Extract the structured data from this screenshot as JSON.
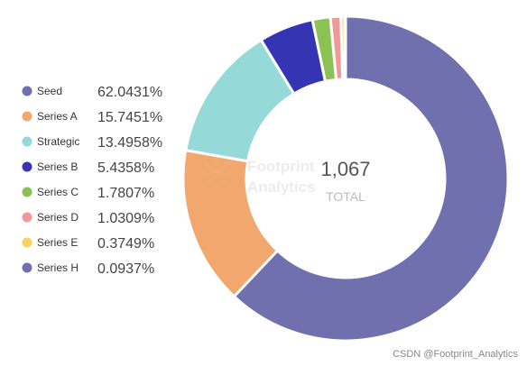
{
  "chart_data": {
    "type": "pie",
    "variant": "donut",
    "legend_position": "left",
    "center_value": "1,067",
    "center_label": "TOTAL",
    "slices": [
      {
        "name": "Seed",
        "value": 62.0431,
        "label": "62.0431%",
        "color": "#7070ae"
      },
      {
        "name": "Series A",
        "value": 15.7451,
        "label": "15.7451%",
        "color": "#f1a76e"
      },
      {
        "name": "Strategic",
        "value": 13.4958,
        "label": "13.4958%",
        "color": "#96d9d9"
      },
      {
        "name": "Series B",
        "value": 5.4358,
        "label": "5.4358%",
        "color": "#3535b3"
      },
      {
        "name": "Series C",
        "value": 1.7807,
        "label": "1.7807%",
        "color": "#8cc153"
      },
      {
        "name": "Series D",
        "value": 1.0309,
        "label": "1.0309%",
        "color": "#f19999"
      },
      {
        "name": "Series E",
        "value": 0.3749,
        "label": "0.3749%",
        "color": "#f7d360"
      },
      {
        "name": "Series H",
        "value": 0.0937,
        "label": "0.0937%",
        "color": "#7070ae"
      }
    ]
  },
  "watermark": {
    "line1": "Footprint",
    "line2": "Analytics"
  },
  "credit": "CSDN @Footprint_Analytics"
}
